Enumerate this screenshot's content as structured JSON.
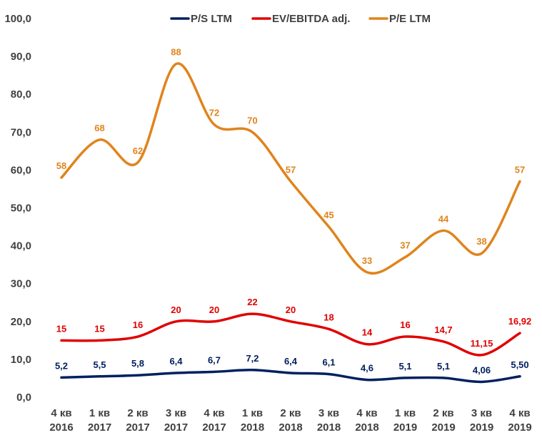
{
  "chart_data": {
    "type": "line",
    "title": "",
    "xlabel": "",
    "ylabel": "",
    "ylim": [
      0,
      100
    ],
    "yticks": [
      "0,0",
      "10,0",
      "20,0",
      "30,0",
      "40,0",
      "50,0",
      "60,0",
      "70,0",
      "80,0",
      "90,0",
      "100,0"
    ],
    "categories": [
      [
        "4 кв",
        "2016"
      ],
      [
        "1 кв",
        "2017"
      ],
      [
        "2 кв",
        "2017"
      ],
      [
        "3 кв",
        "2017"
      ],
      [
        "4 кв",
        "2017"
      ],
      [
        "1 кв",
        "2018"
      ],
      [
        "2 кв",
        "2018"
      ],
      [
        "3 кв",
        "2018"
      ],
      [
        "4 кв",
        "2018"
      ],
      [
        "1 кв",
        "2019"
      ],
      [
        "2 кв",
        "2019"
      ],
      [
        "3 кв",
        "2019"
      ],
      [
        "4 кв",
        "2019"
      ]
    ],
    "legend_position": "top",
    "grid": false,
    "series": [
      {
        "name": "P/S LTM",
        "color": "#002060",
        "values": [
          5.2,
          5.5,
          5.8,
          6.4,
          6.7,
          7.2,
          6.4,
          6.1,
          4.6,
          5.1,
          5.1,
          4.06,
          5.5
        ],
        "labels": [
          "5,2",
          "5,5",
          "5,8",
          "6,4",
          "6,7",
          "7,2",
          "6,4",
          "6,1",
          "4,6",
          "5,1",
          "5,1",
          "4,06",
          "5,50"
        ]
      },
      {
        "name": "EV/EBITDA adj.",
        "color": "#E00000",
        "values": [
          15,
          15,
          16,
          20,
          20,
          22,
          20,
          18,
          14,
          16,
          14.7,
          11.15,
          16.92
        ],
        "labels": [
          "15",
          "15",
          "16",
          "20",
          "20",
          "22",
          "20",
          "18",
          "14",
          "16",
          "14,7",
          "11,15",
          "16,92"
        ]
      },
      {
        "name": "P/E LTM",
        "color": "#E0841C",
        "values": [
          58,
          68,
          62,
          88,
          72,
          70,
          57,
          45,
          33,
          37,
          44,
          38,
          57
        ],
        "labels": [
          "58",
          "68",
          "62",
          "88",
          "72",
          "70",
          "57",
          "45",
          "33",
          "37",
          "44",
          "38",
          "57"
        ]
      }
    ]
  }
}
